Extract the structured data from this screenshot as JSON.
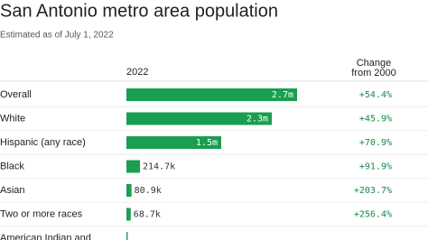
{
  "chart_data": {
    "type": "bar",
    "orientation": "horizontal",
    "title": "San Antonio metro area population",
    "subtitle": "Estimated as of July 1, 2022",
    "value_header": "2022",
    "change_header": [
      "Change",
      "from 2000"
    ],
    "categories": [
      "Overall",
      "White",
      "Hispanic (any race)",
      "Black",
      "Asian",
      "Two or more races",
      "American Indian and"
    ],
    "values": [
      2700000,
      2300000,
      1500000,
      214700,
      80900,
      68700,
      20000
    ],
    "value_labels": [
      "2.7m",
      "2.3m",
      "1.5m",
      "214.7k",
      "80.9k",
      "68.7k",
      null
    ],
    "changes": [
      54.4,
      45.9,
      70.9,
      91.9,
      203.7,
      256.4,
      null
    ],
    "change_labels": [
      "+54.4%",
      "+45.9%",
      "+70.9%",
      "+91.9%",
      "+203.7%",
      "+256.4%",
      null
    ],
    "color": "#1a9e50",
    "change_color": "#178a45",
    "xlim": [
      0,
      2700000
    ]
  }
}
